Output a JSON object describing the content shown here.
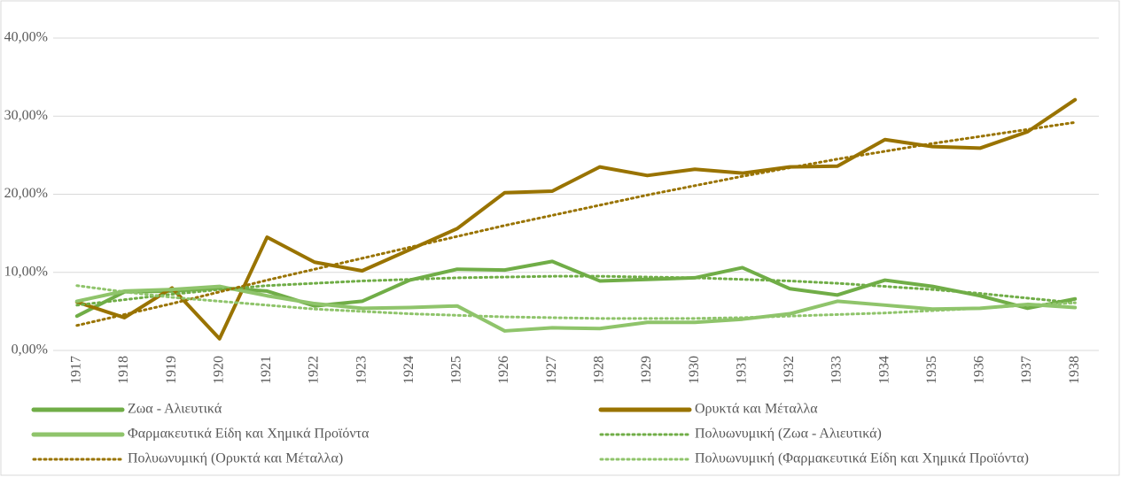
{
  "chart_data": {
    "type": "line",
    "categories": [
      "1917",
      "1918",
      "1919",
      "1920",
      "1921",
      "1922",
      "1923",
      "1924",
      "1925",
      "1926",
      "1927",
      "1928",
      "1929",
      "1930",
      "1931",
      "1932",
      "1933",
      "1934",
      "1935",
      "1936",
      "1937",
      "1938"
    ],
    "ylim": [
      0,
      40
    ],
    "yticks": [
      {
        "value": 0,
        "label": "0,00%"
      },
      {
        "value": 10,
        "label": "10,00%"
      },
      {
        "value": 20,
        "label": "20,00%"
      },
      {
        "value": 30,
        "label": "30,00%"
      },
      {
        "value": 40,
        "label": "40,00%"
      }
    ],
    "grid": true,
    "legend": "bottom",
    "series": [
      {
        "name": "Ζωα - Αλιευτικά",
        "color": "#70ad47",
        "style": "solid",
        "values": [
          4.4,
          7.5,
          7.6,
          8.0,
          7.6,
          5.7,
          6.3,
          9.0,
          10.4,
          10.3,
          11.4,
          8.9,
          9.1,
          9.3,
          10.6,
          7.9,
          7.1,
          9.0,
          8.2,
          7.0,
          5.4,
          6.6
        ]
      },
      {
        "name": "Ορυκτά και Μέταλλα",
        "color": "#997300",
        "style": "solid",
        "values": [
          6.2,
          4.2,
          8.0,
          1.5,
          14.5,
          11.3,
          10.2,
          12.9,
          15.6,
          20.2,
          20.4,
          23.5,
          22.4,
          23.2,
          22.7,
          23.5,
          23.6,
          27.0,
          26.1,
          25.9,
          28.0,
          32.1
        ]
      },
      {
        "name": "Φαρμακευτικά Είδη και Χημικά Προϊόντα",
        "color": "#8fc46b",
        "style": "solid",
        "values": [
          6.3,
          7.6,
          7.8,
          8.2,
          7.0,
          6.0,
          5.4,
          5.5,
          5.7,
          2.5,
          2.9,
          2.8,
          3.6,
          3.6,
          4.0,
          4.7,
          6.3,
          5.8,
          5.3,
          5.4,
          5.9,
          5.5
        ]
      },
      {
        "name": "Πολυωνυμική (Ζωα - Αλιευτικά)",
        "color": "#70ad47",
        "style": "dotted",
        "values": [
          5.8,
          6.5,
          7.2,
          7.8,
          8.3,
          8.6,
          8.9,
          9.1,
          9.3,
          9.4,
          9.5,
          9.5,
          9.4,
          9.3,
          9.1,
          8.9,
          8.6,
          8.2,
          7.8,
          7.3,
          6.7,
          6.1
        ]
      },
      {
        "name": "Πολυωνυμική (Ορυκτά και Μέταλλα)",
        "color": "#997300",
        "style": "dotted",
        "values": [
          3.2,
          4.6,
          6.0,
          7.5,
          9.0,
          10.4,
          11.8,
          13.2,
          14.6,
          16.0,
          17.3,
          18.6,
          19.9,
          21.1,
          22.3,
          23.4,
          24.5,
          25.5,
          26.5,
          27.4,
          28.3,
          29.2
        ]
      },
      {
        "name": "Πολυωνυμική (Φαρμακευτικά Είδη και Χημικά Προϊόντα)",
        "color": "#8fc46b",
        "style": "dotted",
        "values": [
          8.3,
          7.5,
          6.8,
          6.3,
          5.8,
          5.3,
          5.0,
          4.7,
          4.5,
          4.3,
          4.2,
          4.1,
          4.1,
          4.1,
          4.2,
          4.4,
          4.6,
          4.8,
          5.1,
          5.4,
          5.8,
          6.1
        ]
      }
    ]
  }
}
